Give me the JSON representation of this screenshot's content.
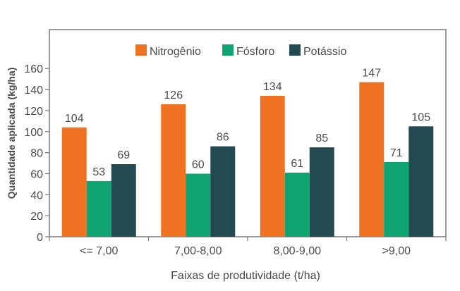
{
  "chart_data": {
    "type": "bar",
    "title": "",
    "xlabel": "Faixas de produtividade (t/ha)",
    "ylabel": "Quantidade aplicada (kg/ha)",
    "categories": [
      "<= 7,00",
      "7,00-8,00",
      "8,00-9,00",
      ">9,00"
    ],
    "series": [
      {
        "name": "Nitrogênio",
        "color": "#EE7222",
        "values": [
          104,
          126,
          134,
          147
        ]
      },
      {
        "name": "Fósforo",
        "color": "#10A473",
        "values": [
          53,
          60,
          61,
          71
        ]
      },
      {
        "name": "Potássio",
        "color": "#224A50",
        "values": [
          69,
          86,
          85,
          105
        ]
      }
    ],
    "yticks": [
      0,
      20,
      40,
      60,
      80,
      100,
      120,
      140,
      160
    ],
    "ylim": [
      0,
      197
    ],
    "grid": false,
    "legend_position": "top-center",
    "data_labels": true
  }
}
